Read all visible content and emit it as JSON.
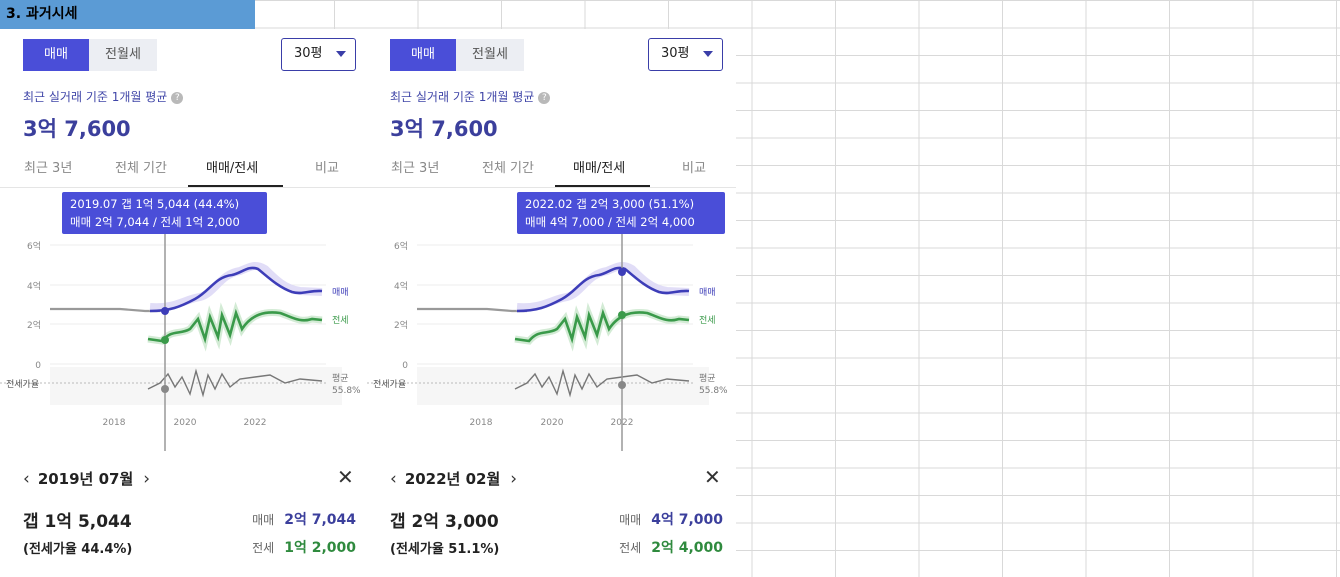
{
  "sheet_title": "3. 과거시세",
  "panels": [
    {
      "seg_on": "매매",
      "seg_off": "전월세",
      "size": "30평",
      "avg_label": "최근 실거래 기준 1개월 평균",
      "avg_price": "3억 7,600",
      "tabs": [
        "최근 3년",
        "전체 기간",
        "매매/전세",
        "비교"
      ],
      "active_tab": "매매/전세",
      "tooltip_line1": "2019.07  갭 1억 5,044 (44.4%)",
      "tooltip_line2": "매매 2억 7,044 / 전세 1억 2,000",
      "month": "2019년 07월",
      "gap": "갭 1억 5,044",
      "ratio": "(전세가율 44.4%)",
      "sale_label": "매매",
      "sale_value": "2억 7,044",
      "jeonse_label": "전세",
      "jeonse_value": "1억 2,000"
    },
    {
      "seg_on": "매매",
      "seg_off": "전월세",
      "size": "30평",
      "avg_label": "최근 실거래 기준 1개월 평균",
      "avg_price": "3억 7,600",
      "tabs": [
        "최근 3년",
        "전체 기간",
        "매매/전세",
        "비교"
      ],
      "active_tab": "매매/전세",
      "tooltip_line1": "2022.02  갭 2억 3,000 (51.1%)",
      "tooltip_line2": "매매 4억 7,000 / 전세 2억 4,000",
      "month": "2022년 02월",
      "gap": "갭 2억 3,000",
      "ratio": "(전세가율 51.1%)",
      "sale_label": "매매",
      "sale_value": "4억 7,000",
      "jeonse_label": "전세",
      "jeonse_value": "2억 4,000"
    }
  ],
  "chart_data": [
    {
      "type": "line",
      "x_ticks": [
        "2018",
        "2020",
        "2022"
      ],
      "y_ticks": [
        "6억",
        "4억",
        "2억",
        "0"
      ],
      "ylim": [
        0,
        6
      ],
      "series_labels": [
        "매매",
        "전세"
      ],
      "ratio_label": "전세가율",
      "ratio_avg_label": "평균",
      "ratio_avg_value": "55.8%",
      "selected": "2019.07",
      "colors": {
        "sale": "#3d3db8",
        "jeonse": "#3a9a4a",
        "ratio": "#777777"
      }
    },
    {
      "type": "line",
      "x_ticks": [
        "2018",
        "2020",
        "2022"
      ],
      "y_ticks": [
        "6억",
        "4억",
        "2억",
        "0"
      ],
      "ylim": [
        0,
        6
      ],
      "series_labels": [
        "매매",
        "전세"
      ],
      "ratio_label": "전세가율",
      "ratio_avg_label": "평균",
      "ratio_avg_value": "55.8%",
      "selected": "2022.02",
      "colors": {
        "sale": "#3d3db8",
        "jeonse": "#3a9a4a",
        "ratio": "#777777"
      }
    }
  ]
}
